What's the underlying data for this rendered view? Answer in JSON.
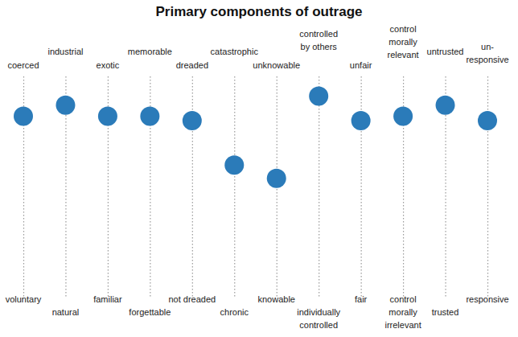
{
  "chart_data": {
    "type": "dot_scales",
    "title": "Primary components of outrage",
    "categories": [
      [
        "coerced"
      ],
      [
        "industrial"
      ],
      [
        "exotic"
      ],
      [
        "memorable"
      ],
      [
        "dreaded"
      ],
      [
        "catastrophic"
      ],
      [
        "unknowable"
      ],
      [
        "controlled",
        "by others"
      ],
      [
        "unfair"
      ],
      [
        "control",
        "morally",
        "relevant"
      ],
      [
        "untrusted"
      ],
      [
        "un-",
        "responsive"
      ]
    ],
    "bottom_labels": [
      [
        "voluntary"
      ],
      [
        "natural"
      ],
      [
        "familiar"
      ],
      [
        "forgettable"
      ],
      [
        "not dreaded"
      ],
      [
        "chronic"
      ],
      [
        "knowable"
      ],
      [
        "individually",
        "controlled"
      ],
      [
        "fair"
      ],
      [
        "control",
        "morally",
        "irrelevant"
      ],
      [
        "trusted"
      ],
      [
        "responsive"
      ]
    ],
    "values": [
      0.81,
      0.86,
      0.81,
      0.81,
      0.79,
      0.59,
      0.53,
      0.9,
      0.79,
      0.81,
      0.86,
      0.79
    ],
    "ylim": [
      0,
      1
    ],
    "tick_labels": false,
    "color": "#2b7bb9"
  }
}
